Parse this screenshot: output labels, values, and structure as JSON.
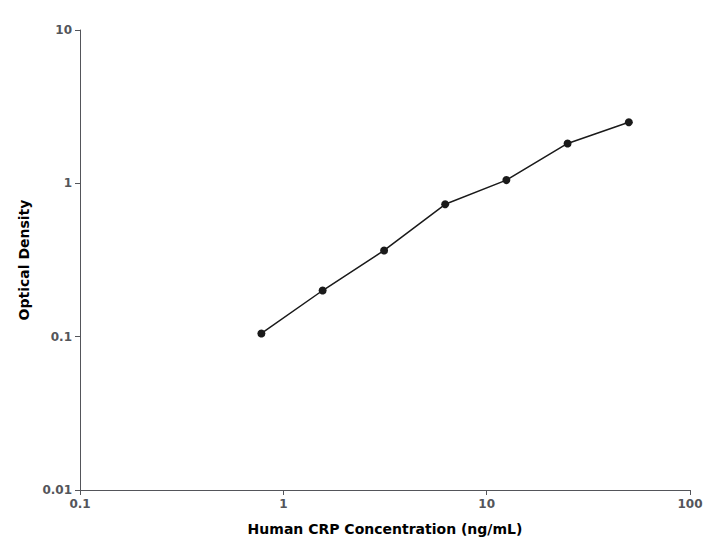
{
  "chart_data": {
    "type": "line",
    "x": [
      0.78,
      1.56,
      3.13,
      6.25,
      12.5,
      25.0,
      50.0
    ],
    "values": [
      0.105,
      0.2,
      0.365,
      0.73,
      1.05,
      1.82,
      2.5
    ],
    "x_label": "Human CRP Concentration (ng/mL)",
    "y_label": "Optical Density",
    "xlim": [
      0.1,
      100
    ],
    "ylim": [
      0.01,
      10
    ],
    "xticks": [
      0.1,
      1,
      10,
      100
    ],
    "yticks": [
      0.01,
      0.1,
      1,
      10
    ],
    "log": true,
    "grid": false,
    "color": "#1a1a1a",
    "marker": "circle"
  }
}
